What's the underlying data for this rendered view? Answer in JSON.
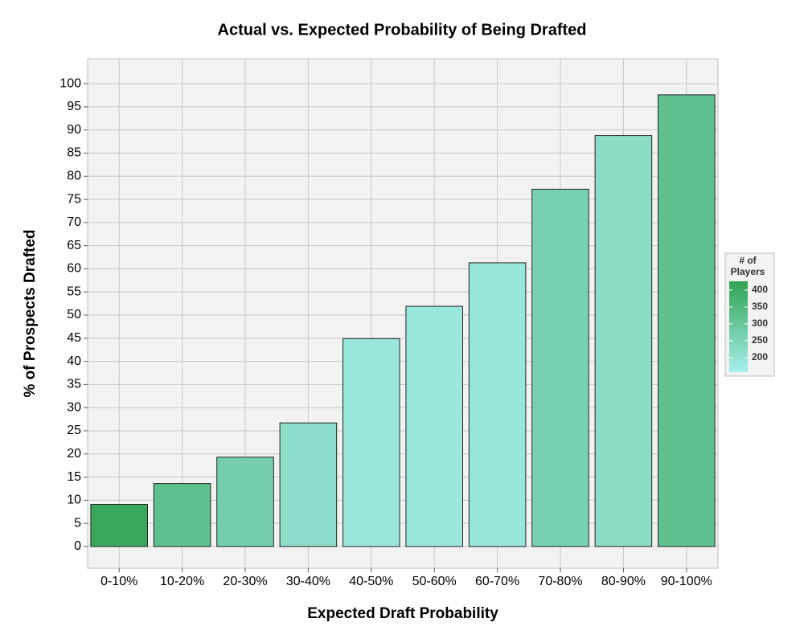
{
  "chart_data": {
    "type": "bar",
    "title": "Actual vs. Expected Probability of Being Drafted",
    "x_label": "Expected Draft Probability",
    "y_label": "% of Prospects Drafted",
    "categories": [
      "0-10%",
      "10-20%",
      "20-30%",
      "30-40%",
      "40-50%",
      "50-60%",
      "60-70%",
      "70-80%",
      "80-90%",
      "90-100%"
    ],
    "values": [
      9.1,
      13.6,
      19.3,
      26.7,
      44.9,
      51.9,
      61.3,
      77.2,
      88.8,
      97.6
    ],
    "players": [
      410,
      320,
      270,
      215,
      185,
      185,
      190,
      265,
      220,
      320
    ],
    "ylim": [
      -4.7,
      105.4
    ],
    "yticks": [
      0,
      5,
      10,
      15,
      20,
      25,
      30,
      35,
      40,
      45,
      50,
      55,
      60,
      65,
      70,
      75,
      80,
      85,
      90,
      95,
      100
    ],
    "grid": true,
    "legend": {
      "title": [
        "# of",
        "Players"
      ],
      "position": "right",
      "lim": [
        157,
        426
      ],
      "ticks": [
        200,
        250,
        300,
        350,
        400
      ],
      "low_color": "#a6efec",
      "high_color": "#31a354"
    }
  }
}
